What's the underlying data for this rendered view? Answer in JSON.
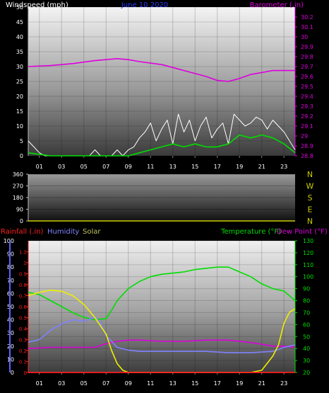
{
  "colors": {
    "background": "#000000",
    "windspeed": "#ffffff",
    "wind_gust": "#e0e0e0",
    "wind_avg": "#00dd00",
    "barometer": "#dd00dd",
    "date_title": "#2a3cff",
    "wind_dir_markers": "#cccc00",
    "rainfall": "#ff2020",
    "humidity": "#8080ff",
    "solar": "#c0c060",
    "temperature": "#00dd00",
    "dew_point": "#dd00dd",
    "temp_axis": "#00dd00",
    "humidity_axis": "#6060ff"
  },
  "chart_data": [
    {
      "type": "line",
      "panel": "wind-barometer",
      "title": "June 10 2020",
      "left_label": "Windspeed (mph)",
      "right_label": "Barometer (.in)",
      "x_ticks": [
        "01",
        "03",
        "05",
        "07",
        "09",
        "11",
        "13",
        "15",
        "17",
        "19",
        "21",
        "23"
      ],
      "x_range_hours": [
        0,
        24
      ],
      "ylim_left": [
        0,
        50
      ],
      "yticks_left": [
        0,
        5,
        10,
        15,
        20,
        25,
        30,
        35,
        40,
        45,
        50
      ],
      "ylim_right": [
        28.8,
        30.3
      ],
      "yticks_right": [
        28.8,
        28.9,
        29,
        29.1,
        29.2,
        29.3,
        29.4,
        29.5,
        29.6,
        29.7,
        29.8,
        29.9,
        30,
        30.1,
        30.2
      ],
      "grid": true,
      "series": [
        {
          "name": "Windspeed (mph)",
          "x": [
            0,
            0.5,
            1,
            1.5,
            2,
            2.5,
            3,
            3.5,
            4,
            4.5,
            5,
            5.5,
            6,
            6.5,
            7,
            7.5,
            8,
            8.5,
            9,
            9.5,
            10,
            10.5,
            11,
            11.5,
            12,
            12.5,
            13,
            13.5,
            14,
            14.5,
            15,
            15.5,
            16,
            16.5,
            17,
            17.5,
            18,
            18.5,
            19,
            19.5,
            20,
            20.5,
            21,
            21.5,
            22,
            22.5,
            23,
            23.5,
            24
          ],
          "values": [
            5,
            3,
            1,
            0,
            0,
            0,
            0,
            0,
            0,
            0,
            0,
            0,
            2,
            0,
            0,
            0,
            2,
            0,
            2,
            3,
            6,
            8,
            11,
            5,
            9,
            12,
            4,
            14,
            8,
            12,
            5,
            10,
            13,
            6,
            9,
            11,
            4,
            14,
            12,
            10,
            11,
            13,
            12,
            9,
            12,
            10,
            8,
            5,
            2
          ]
        },
        {
          "name": "Wind Avg",
          "x": [
            0,
            1,
            2,
            3,
            4,
            5,
            6,
            7,
            8,
            9,
            10,
            11,
            12,
            13,
            14,
            15,
            16,
            17,
            18,
            19,
            20,
            21,
            22,
            23,
            24
          ],
          "values": [
            1,
            0.5,
            0,
            0,
            0,
            0,
            0,
            0,
            0,
            0,
            1,
            2,
            3,
            4,
            3,
            4,
            3,
            3,
            4,
            7,
            6,
            7,
            6,
            4,
            1
          ]
        },
        {
          "name": "Barometer (.in)",
          "x": [
            0,
            2,
            4,
            6,
            8,
            9,
            10,
            12,
            14,
            16,
            17,
            18,
            19,
            20,
            22,
            24
          ],
          "values": [
            29.7,
            29.71,
            29.73,
            29.76,
            29.78,
            29.77,
            29.75,
            29.72,
            29.66,
            29.6,
            29.56,
            29.55,
            29.58,
            29.62,
            29.66,
            29.66
          ]
        }
      ]
    },
    {
      "type": "line",
      "panel": "wind-direction",
      "ylim": [
        0,
        360
      ],
      "yticks": [
        0,
        90,
        180,
        270,
        360
      ],
      "compass": [
        "N",
        "W",
        "S",
        "E",
        "N"
      ],
      "series": [
        {
          "name": "Wind Direction",
          "x": [
            0,
            24
          ],
          "values": [
            0,
            0
          ]
        }
      ]
    },
    {
      "type": "line",
      "panel": "temperature-humidity",
      "legend_left": [
        "Rainfall (.in)",
        "Humidity",
        "Solar"
      ],
      "legend_right": [
        "Temperature (°F)",
        "Dew Point (°F)"
      ],
      "x_ticks": [
        "01",
        "03",
        "05",
        "07",
        "09",
        "11",
        "13",
        "15",
        "17",
        "19",
        "21",
        "23"
      ],
      "yticks_humidity": [
        0,
        10,
        20,
        30,
        40,
        50,
        60,
        70,
        80,
        90,
        100
      ],
      "yticks_rain": [
        0,
        0.1,
        0.2,
        0.3,
        0.4,
        0.5,
        0.6,
        0.7,
        0.8,
        0.9,
        1,
        1.1
      ],
      "yticks_temp": [
        20,
        30,
        40,
        50,
        60,
        70,
        80,
        90,
        100,
        110,
        120,
        130
      ],
      "grid": true,
      "series": [
        {
          "name": "Temperature (°F)",
          "x": [
            0,
            1,
            2,
            3,
            4,
            5,
            6,
            7,
            7.5,
            8,
            9,
            10,
            11,
            12,
            13,
            14,
            15,
            16,
            17,
            18,
            19,
            20,
            21,
            22,
            23,
            23.5,
            24
          ],
          "values": [
            87,
            85,
            80,
            75,
            70,
            66,
            64,
            65,
            72,
            80,
            90,
            96,
            100,
            102,
            103,
            104,
            106,
            107,
            108,
            108,
            104,
            100,
            94,
            90,
            88,
            84,
            80
          ]
        },
        {
          "name": "Dew Point (°F)",
          "x": [
            0,
            2,
            4,
            6,
            7,
            8,
            9,
            10,
            12,
            14,
            16,
            18,
            20,
            22,
            23,
            24
          ],
          "values": [
            40,
            41,
            41,
            41,
            44,
            46,
            47,
            47,
            46,
            46,
            47,
            47,
            45,
            42,
            42,
            41
          ]
        },
        {
          "name": "Humidity",
          "x": [
            0,
            1,
            2,
            3,
            4,
            5,
            6,
            6.5,
            7,
            8,
            9,
            10,
            12,
            14,
            16,
            18,
            20,
            22,
            23,
            24
          ],
          "values": [
            23,
            25,
            32,
            37,
            40,
            39,
            42,
            38,
            28,
            19,
            17,
            16,
            16,
            16,
            16,
            15,
            15,
            16,
            19,
            21
          ]
        },
        {
          "name": "Solar",
          "x": [
            0,
            1,
            2,
            3,
            4,
            5,
            6,
            7,
            7.5,
            8,
            8.5,
            9,
            10,
            20,
            21,
            22,
            22.5,
            23,
            23.5,
            24
          ],
          "values": [
            0.7,
            0.73,
            0.75,
            0.74,
            0.7,
            0.62,
            0.5,
            0.35,
            0.2,
            0.08,
            0.02,
            0,
            0,
            0,
            0.02,
            0.15,
            0.25,
            0.45,
            0.55,
            0.58
          ]
        },
        {
          "name": "Rainfall (.in)",
          "x": [
            0,
            24
          ],
          "values": [
            0,
            0
          ]
        }
      ]
    }
  ]
}
